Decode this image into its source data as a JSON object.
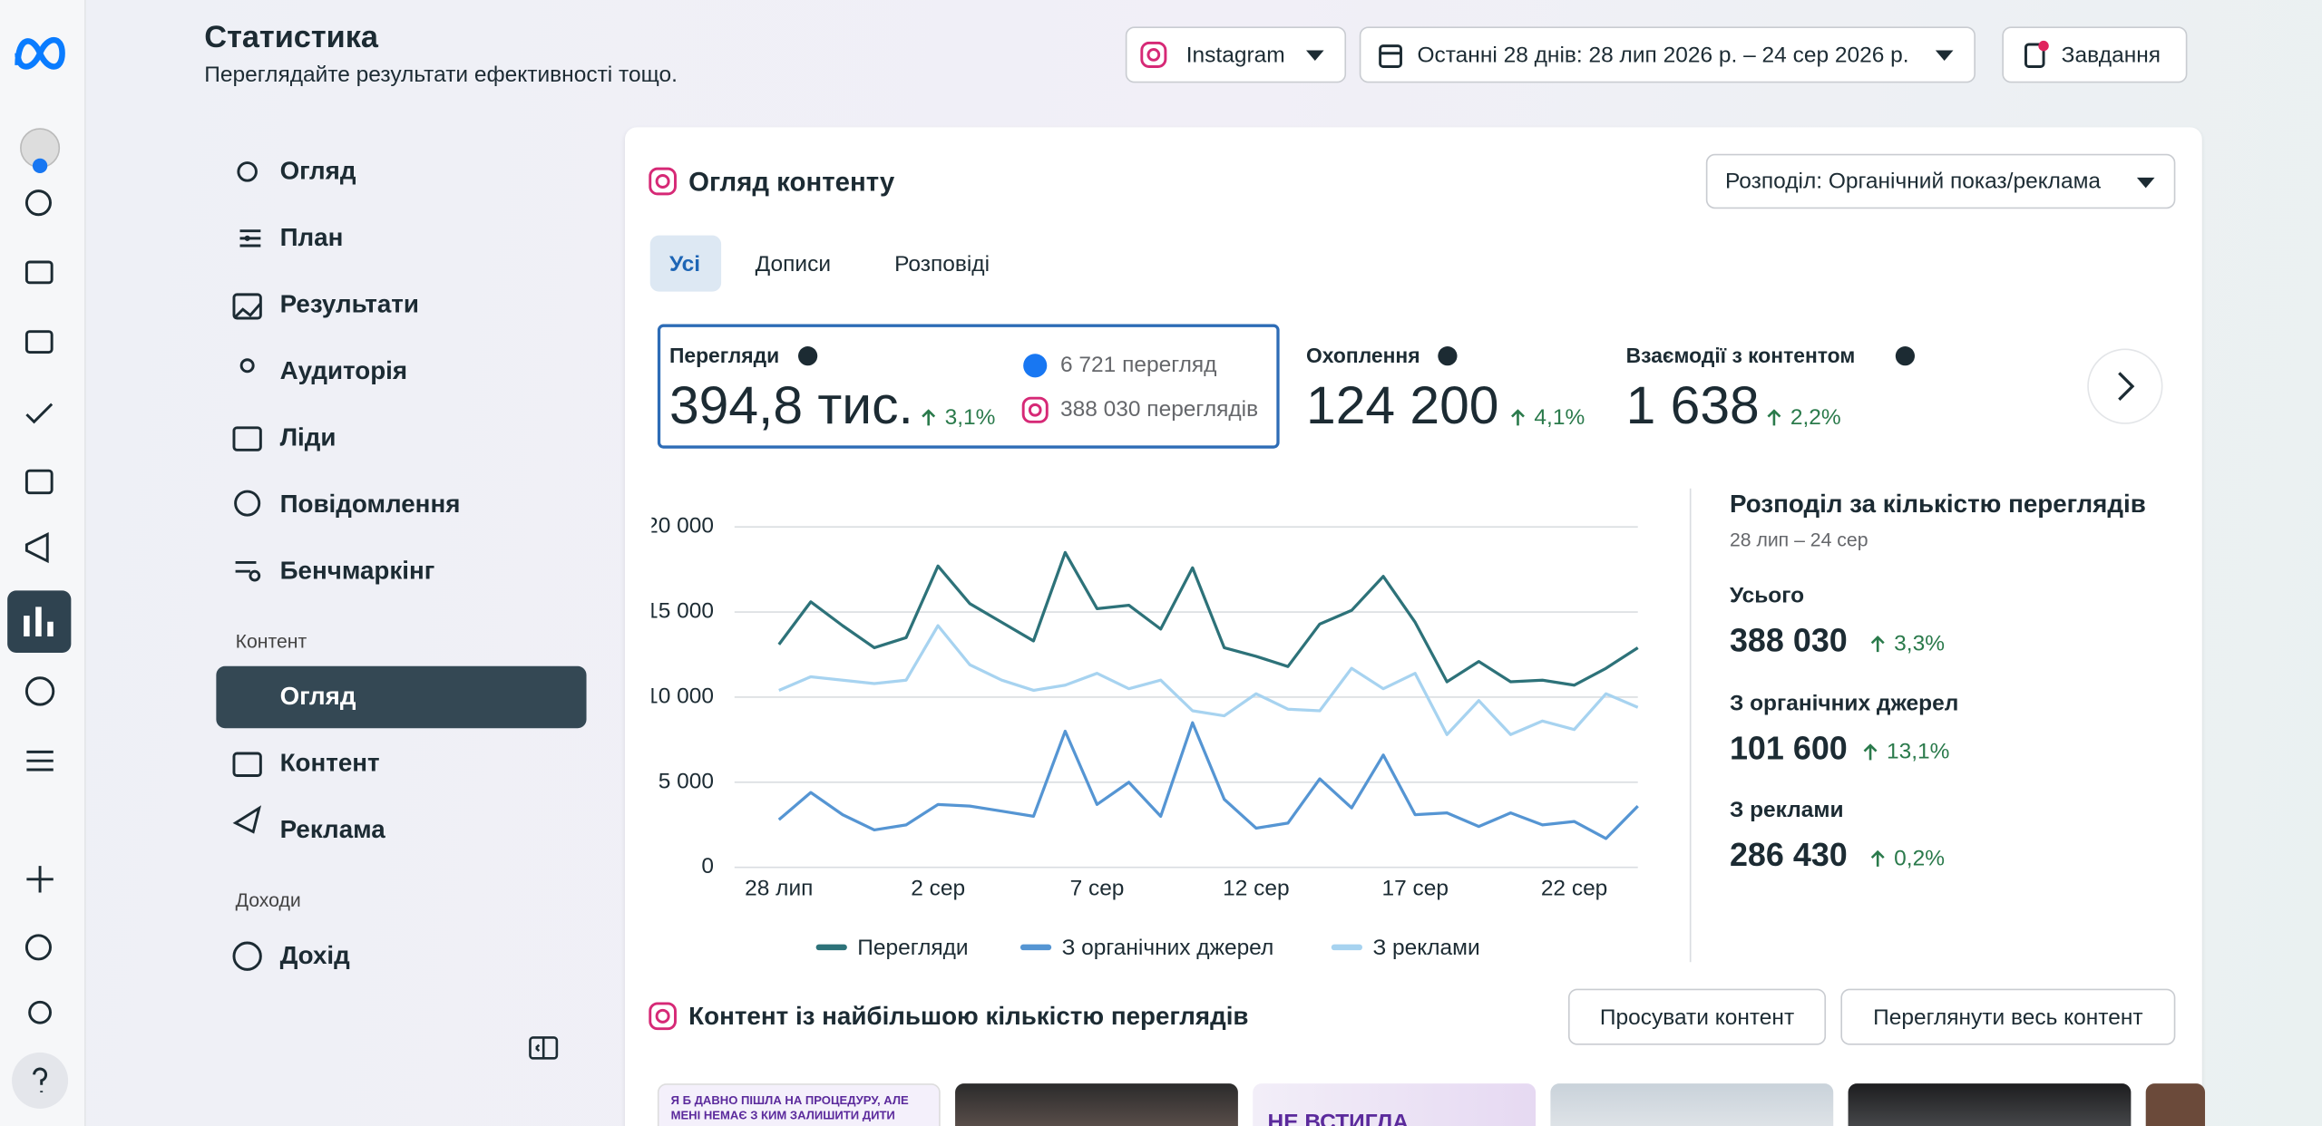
{
  "header": {
    "title": "Статистика",
    "subtitle": "Переглядайте результати ефективності тощо.",
    "platform": "Instagram",
    "date_range": "Останні 28 днів: 28 лип 2026 р. – 24 сер 2026 р.",
    "tasks": "Завдання"
  },
  "nav": {
    "items": [
      "Огляд",
      "План",
      "Результати",
      "Аудиторія",
      "Ліди",
      "Повідомлення",
      "Бенчмаркінг"
    ],
    "content_section": "Контент",
    "content_items": [
      "Огляд",
      "Контент",
      "Реклама"
    ],
    "revenue_section": "Доходи",
    "revenue_items": [
      "Дохід"
    ]
  },
  "content_overview": {
    "title": "Огляд контенту",
    "breakdown": "Розподіл: Органічний показ/реклама",
    "tabs": [
      "Усі",
      "Дописи",
      "Розповіді"
    ],
    "metrics": [
      {
        "label": "Перегляди",
        "value": "394,8 тис.",
        "change": "3,1%",
        "sources": [
          "6 721 перегляд",
          "388 030 переглядів"
        ]
      },
      {
        "label": "Охоплення",
        "value": "124 200",
        "change": "4,1%"
      },
      {
        "label": "Взаємодії з контентом",
        "value": "1 638",
        "change": "2,2%"
      }
    ]
  },
  "chart_data": {
    "type": "line",
    "categories": [
      "28 лип",
      null,
      null,
      null,
      null,
      "2 сер",
      null,
      null,
      null,
      null,
      "7 сер",
      null,
      null,
      null,
      null,
      "12 сер",
      null,
      null,
      null,
      null,
      "17 сер",
      null,
      null,
      null,
      null,
      "22 сер",
      null,
      null
    ],
    "series": [
      {
        "name": "Перегляди",
        "color": "#2d7279",
        "values": [
          13100,
          15600,
          14200,
          12900,
          13500,
          17700,
          15500,
          14400,
          13300,
          18500,
          15200,
          15400,
          14000,
          17600,
          12900,
          12400,
          11800,
          14300,
          15100,
          17100,
          14400,
          10900,
          12100,
          10900,
          11000,
          10700,
          11700,
          12900
        ]
      },
      {
        "name": "З органічних джерел",
        "color": "#5595d3",
        "values": [
          2800,
          4400,
          3100,
          2200,
          2500,
          3700,
          3600,
          3300,
          3000,
          8000,
          3700,
          5000,
          3000,
          8500,
          4000,
          2300,
          2600,
          5200,
          3500,
          6600,
          3100,
          3200,
          2400,
          3200,
          2500,
          2700,
          1700,
          3600
        ]
      },
      {
        "name": "З реклами",
        "color": "#a7d3f0",
        "values": [
          10400,
          11200,
          11000,
          10800,
          11000,
          14200,
          11900,
          11000,
          10400,
          10700,
          11400,
          10500,
          11000,
          9200,
          8900,
          10200,
          9300,
          9200,
          11700,
          10500,
          11400,
          7800,
          9800,
          7800,
          8600,
          8100,
          10200,
          9400
        ]
      }
    ],
    "ylim": [
      0,
      20000
    ],
    "yticks": [
      0,
      {
        "value": 5000,
        "label": "5 000"
      },
      {
        "value": 10000,
        "label": "10 000"
      },
      {
        "value": 15000,
        "label": "15 000"
      },
      {
        "value": 20000,
        "label": "20 000"
      }
    ],
    "grid": true
  },
  "views_breakdown": {
    "title": "Розподіл за кількістю переглядів",
    "period": "28 лип – 24 сер",
    "items": [
      {
        "label": "Усього",
        "value": "388 030",
        "change": "3,3%"
      },
      {
        "label": "З органічних джерел",
        "value": "101 600",
        "change": "13,1%"
      },
      {
        "label": "З реклами",
        "value": "286 430",
        "change": "0,2%"
      }
    ]
  },
  "top_content": {
    "title": "Контент із найбільшою кількістю переглядів",
    "buttons": [
      "Просувати контент",
      "Переглянути весь контент"
    ],
    "thumbnail_text": [
      "Я Б ДАВНО ПІШЛА НА ПРОЦЕДУРУ, АЛЕ",
      "МЕНІ НЕМАЄ З КИМ ЗАЛИШИТИ ДИТИ",
      "НЕ ВСТИГЛА"
    ]
  }
}
